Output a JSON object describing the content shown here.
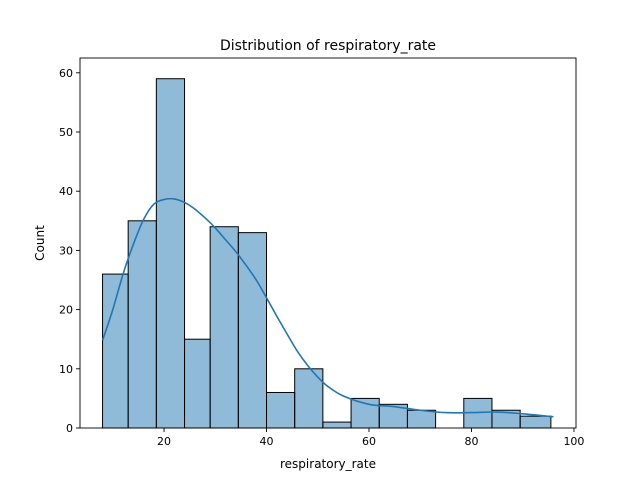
{
  "chart_data": {
    "type": "bar",
    "title": "Distribution of respiratory_rate",
    "xlabel": "respiratory_rate",
    "ylabel": "Count",
    "xlim": [
      3.6,
      100.4
    ],
    "ylim": [
      0,
      62.5
    ],
    "xticks": [
      20,
      40,
      60,
      80,
      100
    ],
    "yticks": [
      0,
      10,
      20,
      30,
      40,
      50,
      60
    ],
    "bin_edges": [
      8.0,
      13.0,
      18.5,
      24.0,
      29.0,
      34.5,
      40.0,
      45.5,
      51.0,
      56.5,
      62.0,
      67.5,
      73.0,
      78.5,
      84.0,
      89.5,
      95.5
    ],
    "counts": [
      26,
      35,
      59,
      15,
      34,
      33,
      6,
      10,
      1,
      5,
      4,
      3,
      0,
      5,
      3,
      2
    ],
    "kde": {
      "x": [
        8,
        10,
        12,
        14,
        16,
        18,
        20,
        22,
        24,
        26,
        28,
        30,
        32,
        34,
        36,
        38,
        40,
        42,
        44,
        46,
        48,
        50,
        52,
        55,
        60,
        65,
        70,
        75,
        80,
        85,
        90,
        96
      ],
      "y": [
        14.8,
        20.0,
        26.0,
        31.0,
        35.2,
        37.8,
        38.6,
        38.7,
        38.1,
        37.0,
        35.5,
        33.8,
        31.8,
        29.8,
        27.5,
        25.0,
        22.0,
        18.9,
        15.9,
        13.0,
        10.6,
        8.6,
        7.0,
        5.4,
        4.0,
        3.6,
        3.0,
        2.6,
        2.6,
        2.7,
        2.4,
        1.9
      ]
    },
    "colors": {
      "bar": "#1f77b4",
      "kde": "#1f77b4"
    }
  }
}
